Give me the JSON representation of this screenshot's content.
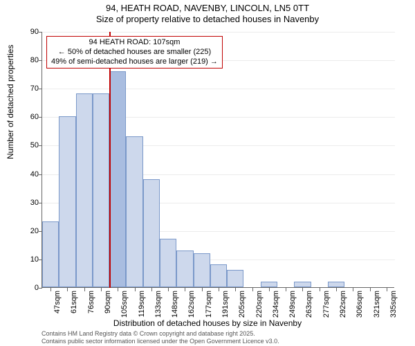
{
  "title_line1": "94, HEATH ROAD, NAVENBY, LINCOLN, LN5 0TT",
  "title_line2": "Size of property relative to detached houses in Navenby",
  "ylabel": "Number of detached properties",
  "xlabel": "Distribution of detached houses by size in Navenby",
  "footer_line1": "Contains HM Land Registry data © Crown copyright and database right 2025.",
  "footer_line2": "Contains public sector information licensed under the Open Government Licence v3.0.",
  "chart": {
    "type": "histogram",
    "ylim": [
      0,
      90
    ],
    "ytick_step": 10,
    "bar_fill": "#cdd8ec",
    "bar_fill_highlight": "#a9bde0",
    "bar_stroke": "#7a98c9",
    "grid_color": "#666666",
    "background_color": "#ffffff",
    "highlight_color": "#c00000",
    "x_labels": [
      "47sqm",
      "61sqm",
      "76sqm",
      "90sqm",
      "105sqm",
      "119sqm",
      "133sqm",
      "148sqm",
      "162sqm",
      "177sqm",
      "191sqm",
      "205sqm",
      "220sqm",
      "234sqm",
      "249sqm",
      "263sqm",
      "277sqm",
      "292sqm",
      "306sqm",
      "321sqm",
      "335sqm"
    ],
    "values": [
      23,
      60,
      68,
      68,
      76,
      53,
      38,
      17,
      13,
      12,
      8,
      6,
      0,
      2,
      0,
      2,
      0,
      2,
      0,
      0,
      0
    ],
    "highlight_index": 4,
    "highlight_line_index": 4,
    "annotation": {
      "line1": "94 HEATH ROAD: 107sqm",
      "line2": "← 50% of detached houses are smaller (225)",
      "line3": "49% of semi-detached houses are larger (219) →"
    }
  }
}
